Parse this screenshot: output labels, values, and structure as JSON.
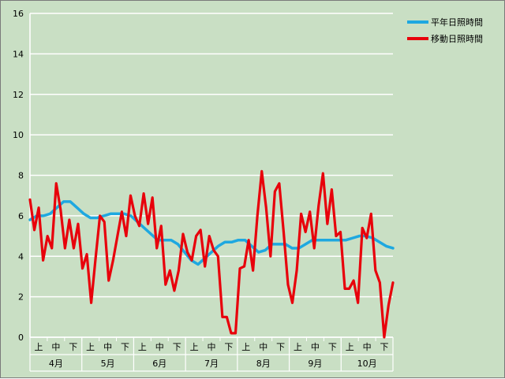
{
  "chart_data": {
    "type": "line",
    "ylim": [
      0,
      16
    ],
    "yticks": [
      0,
      2,
      4,
      6,
      8,
      10,
      12,
      14,
      16
    ],
    "grid": true,
    "legend_position": "top-right",
    "months": [
      "4月",
      "5月",
      "6月",
      "7月",
      "8月",
      "9月",
      "10月"
    ],
    "periods": [
      "上",
      "中",
      "下"
    ],
    "series": [
      {
        "name": "平年日照時間",
        "color": "#1ea8e0",
        "values": [
          5.8,
          6.0,
          6.0,
          6.1,
          6.4,
          6.7,
          6.7,
          6.4,
          6.1,
          5.9,
          5.9,
          6.0,
          6.1,
          6.1,
          6.1,
          6.0,
          5.7,
          5.4,
          5.1,
          4.8,
          4.8,
          4.8,
          4.6,
          4.2,
          3.8,
          3.6,
          3.9,
          4.2,
          4.5,
          4.7,
          4.7,
          4.8,
          4.8,
          4.5,
          4.2,
          4.3,
          4.6,
          4.6,
          4.6,
          4.4,
          4.4,
          4.6,
          4.8,
          4.8,
          4.8,
          4.8,
          4.8,
          4.8,
          4.9,
          5.0,
          5.0,
          4.9,
          4.7,
          4.5,
          4.4
        ]
      },
      {
        "name": "移動日照時間",
        "color": "#e8000b",
        "values": [
          6.8,
          5.3,
          6.4,
          3.8,
          5.0,
          4.4,
          7.6,
          6.3,
          4.4,
          5.8,
          4.4,
          5.6,
          3.4,
          4.1,
          1.7,
          3.9,
          6.0,
          5.7,
          2.8,
          3.8,
          5.0,
          6.2,
          5.0,
          7.0,
          6.0,
          5.5,
          7.1,
          5.6,
          6.9,
          4.4,
          5.5,
          2.6,
          3.3,
          2.3,
          3.3,
          5.1,
          4.2,
          3.8,
          5.0,
          5.3,
          3.5,
          5.0,
          4.3,
          4.0,
          1.0,
          1.0,
          0.2,
          0.2,
          3.4,
          3.5,
          4.8,
          3.3,
          6.0,
          8.2,
          6.4,
          4.0,
          7.2,
          7.6,
          5.2,
          2.6,
          1.7,
          3.3,
          6.1,
          5.2,
          6.2,
          4.4,
          6.5,
          8.1,
          5.6,
          7.3,
          5.0,
          5.2,
          2.4,
          2.4,
          2.8,
          1.7,
          5.4,
          4.9,
          6.1,
          3.3,
          2.7,
          0.0,
          1.6,
          2.7
        ]
      }
    ]
  }
}
